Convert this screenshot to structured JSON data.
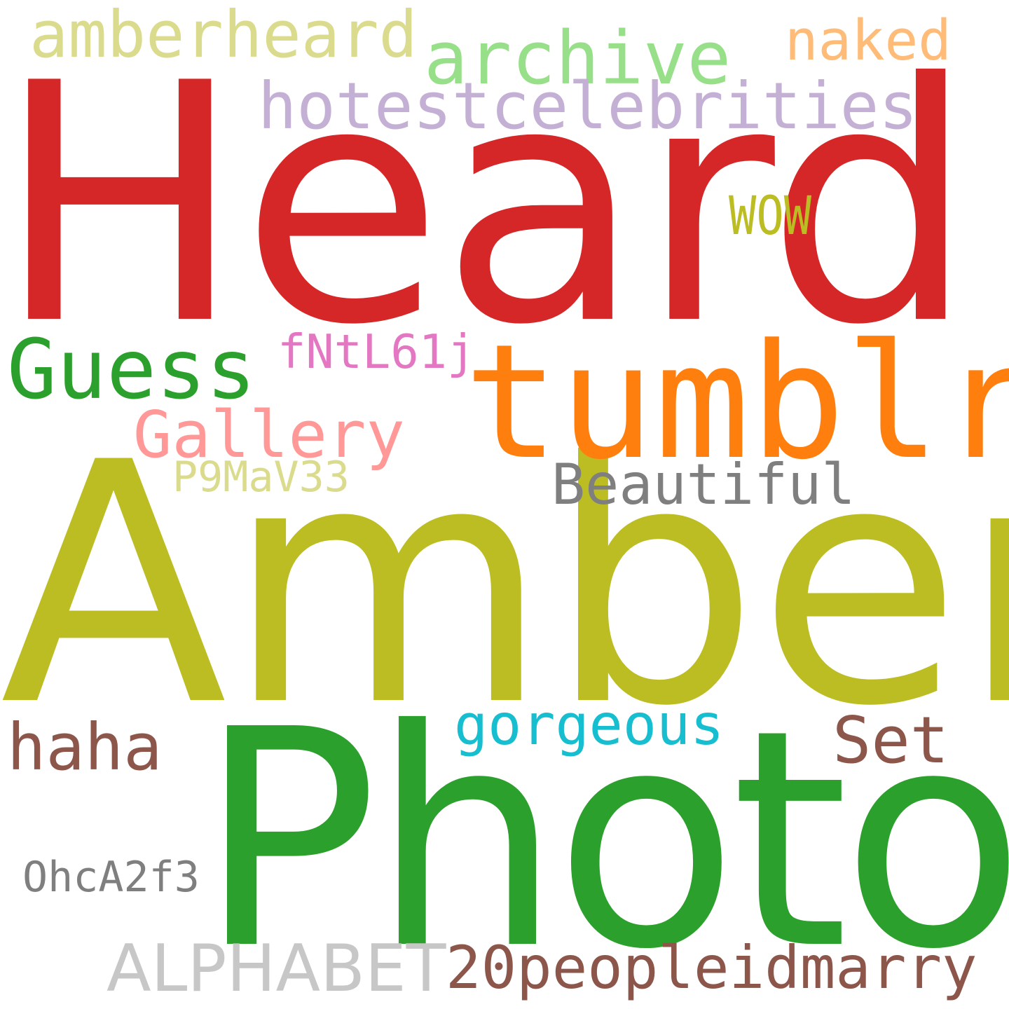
{
  "words": [
    {
      "key": "heard",
      "text": "Heard",
      "color": "#d62728"
    },
    {
      "key": "amber",
      "text": "Amber",
      "color": "#bcbd22"
    },
    {
      "key": "photo",
      "text": "Photo",
      "color": "#2ca02c"
    },
    {
      "key": "tumblr",
      "text": "tumblr",
      "color": "#ff7f0e"
    },
    {
      "key": "guess",
      "text": "Guess",
      "color": "#2ca02c"
    },
    {
      "key": "amberheard",
      "text": "amberheard",
      "color": "#dbdb8d"
    },
    {
      "key": "archive",
      "text": "archive",
      "color": "#98df8a"
    },
    {
      "key": "naked",
      "text": "naked",
      "color": "#ffbb78"
    },
    {
      "key": "hotestcelebrities",
      "text": "hotestcelebrities",
      "color": "#c5b0d5"
    },
    {
      "key": "wow",
      "text": "WOW",
      "color": "#bcbd22"
    },
    {
      "key": "fntl61j",
      "text": "fNtL61j",
      "color": "#e377c2"
    },
    {
      "key": "gallery",
      "text": "Gallery",
      "color": "#ff9896"
    },
    {
      "key": "p9mav33",
      "text": "P9MaV33",
      "color": "#dbdb8d"
    },
    {
      "key": "beautiful",
      "text": "Beautiful",
      "color": "#7f7f7f"
    },
    {
      "key": "gorgeous",
      "text": "gorgeous",
      "color": "#17becf"
    },
    {
      "key": "set",
      "text": "Set",
      "color": "#8c564b"
    },
    {
      "key": "haha",
      "text": "haha",
      "color": "#8c564b"
    },
    {
      "key": "ohca2f3",
      "text": "OhcA2f3",
      "color": "#7f7f7f"
    },
    {
      "key": "alphabet",
      "text": "ALPHABET",
      "color": "#c7c7c7"
    },
    {
      "key": "twentypeople",
      "text": "20peopleidmarry",
      "color": "#8c564b"
    }
  ]
}
